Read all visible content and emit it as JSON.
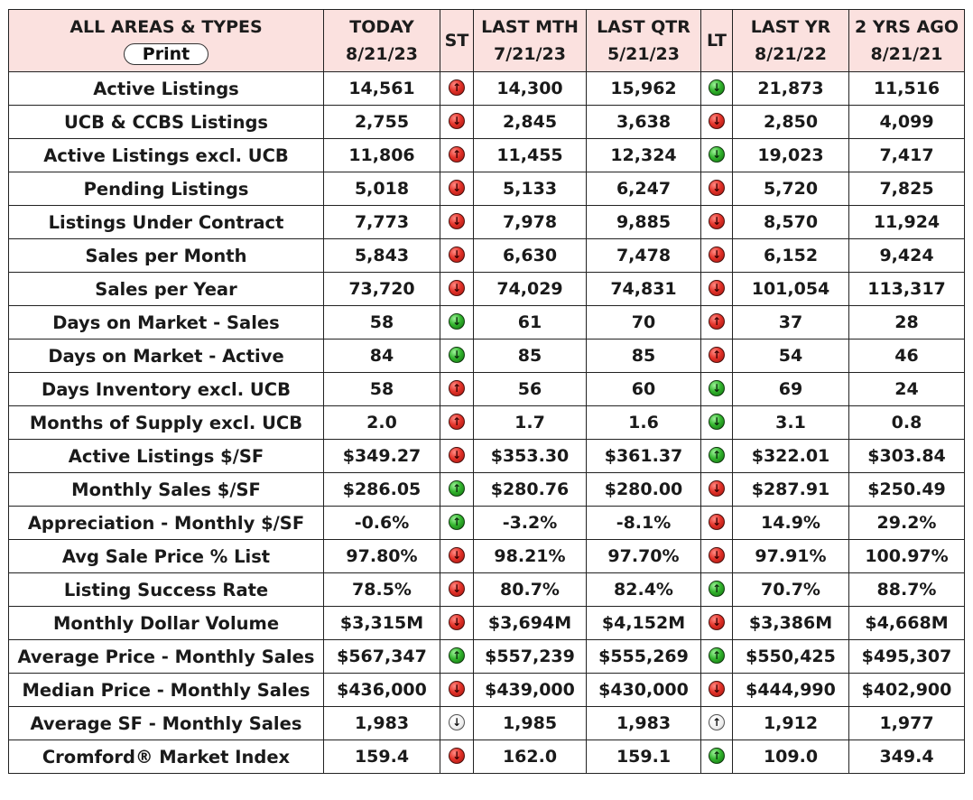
{
  "header": {
    "area_title": "ALL AREAS & TYPES",
    "print_label": "Print",
    "columns": [
      {
        "label": "TODAY",
        "date": "8/21/23"
      },
      {
        "label": "ST",
        "date": ""
      },
      {
        "label": "LAST MTH",
        "date": "7/21/23"
      },
      {
        "label": "LAST QTR",
        "date": "5/21/23"
      },
      {
        "label": "LT",
        "date": ""
      },
      {
        "label": "LAST YR",
        "date": "8/21/22"
      },
      {
        "label": "2 YRS AGO",
        "date": "8/21/21"
      }
    ]
  },
  "colors": {
    "header_bg": "#fbe1df",
    "up_red": "#e4332a",
    "down_green": "#33b52e",
    "neutral": "#ffffff"
  },
  "rows": [
    {
      "metric": "Active Listings",
      "today": "14,561",
      "st": {
        "dir": "up",
        "color": "red"
      },
      "last_mth": "14,300",
      "last_qtr": "15,962",
      "lt": {
        "dir": "down",
        "color": "green"
      },
      "last_yr": "21,873",
      "two_yrs": "11,516"
    },
    {
      "metric": "UCB & CCBS Listings",
      "today": "2,755",
      "st": {
        "dir": "down",
        "color": "red"
      },
      "last_mth": "2,845",
      "last_qtr": "3,638",
      "lt": {
        "dir": "down",
        "color": "red"
      },
      "last_yr": "2,850",
      "two_yrs": "4,099"
    },
    {
      "metric": "Active Listings excl. UCB",
      "today": "11,806",
      "st": {
        "dir": "up",
        "color": "red"
      },
      "last_mth": "11,455",
      "last_qtr": "12,324",
      "lt": {
        "dir": "down",
        "color": "green"
      },
      "last_yr": "19,023",
      "two_yrs": "7,417"
    },
    {
      "metric": "Pending Listings",
      "today": "5,018",
      "st": {
        "dir": "down",
        "color": "red"
      },
      "last_mth": "5,133",
      "last_qtr": "6,247",
      "lt": {
        "dir": "down",
        "color": "red"
      },
      "last_yr": "5,720",
      "two_yrs": "7,825"
    },
    {
      "metric": "Listings Under Contract",
      "today": "7,773",
      "st": {
        "dir": "down",
        "color": "red"
      },
      "last_mth": "7,978",
      "last_qtr": "9,885",
      "lt": {
        "dir": "down",
        "color": "red"
      },
      "last_yr": "8,570",
      "two_yrs": "11,924"
    },
    {
      "metric": "Sales per Month",
      "today": "5,843",
      "st": {
        "dir": "down",
        "color": "red"
      },
      "last_mth": "6,630",
      "last_qtr": "7,478",
      "lt": {
        "dir": "down",
        "color": "red"
      },
      "last_yr": "6,152",
      "two_yrs": "9,424"
    },
    {
      "metric": "Sales per Year",
      "today": "73,720",
      "st": {
        "dir": "down",
        "color": "red"
      },
      "last_mth": "74,029",
      "last_qtr": "74,831",
      "lt": {
        "dir": "down",
        "color": "red"
      },
      "last_yr": "101,054",
      "two_yrs": "113,317"
    },
    {
      "metric": "Days on Market - Sales",
      "today": "58",
      "st": {
        "dir": "down",
        "color": "green"
      },
      "last_mth": "61",
      "last_qtr": "70",
      "lt": {
        "dir": "up",
        "color": "red"
      },
      "last_yr": "37",
      "two_yrs": "28"
    },
    {
      "metric": "Days on Market - Active",
      "today": "84",
      "st": {
        "dir": "down",
        "color": "green"
      },
      "last_mth": "85",
      "last_qtr": "85",
      "lt": {
        "dir": "up",
        "color": "red"
      },
      "last_yr": "54",
      "two_yrs": "46"
    },
    {
      "metric": "Days Inventory excl. UCB",
      "today": "58",
      "st": {
        "dir": "up",
        "color": "red"
      },
      "last_mth": "56",
      "last_qtr": "60",
      "lt": {
        "dir": "down",
        "color": "green"
      },
      "last_yr": "69",
      "two_yrs": "24"
    },
    {
      "metric": "Months of Supply excl. UCB",
      "today": "2.0",
      "st": {
        "dir": "up",
        "color": "red"
      },
      "last_mth": "1.7",
      "last_qtr": "1.6",
      "lt": {
        "dir": "down",
        "color": "green"
      },
      "last_yr": "3.1",
      "two_yrs": "0.8"
    },
    {
      "metric": "Active Listings $/SF",
      "today": "$349.27",
      "st": {
        "dir": "down",
        "color": "red"
      },
      "last_mth": "$353.30",
      "last_qtr": "$361.37",
      "lt": {
        "dir": "up",
        "color": "green"
      },
      "last_yr": "$322.01",
      "two_yrs": "$303.84"
    },
    {
      "metric": "Monthly Sales $/SF",
      "today": "$286.05",
      "st": {
        "dir": "up",
        "color": "green"
      },
      "last_mth": "$280.76",
      "last_qtr": "$280.00",
      "lt": {
        "dir": "down",
        "color": "red"
      },
      "last_yr": "$287.91",
      "two_yrs": "$250.49"
    },
    {
      "metric": "Appreciation - Monthly $/SF",
      "today": "-0.6%",
      "st": {
        "dir": "up",
        "color": "green"
      },
      "last_mth": "-3.2%",
      "last_qtr": "-8.1%",
      "lt": {
        "dir": "down",
        "color": "red"
      },
      "last_yr": "14.9%",
      "two_yrs": "29.2%"
    },
    {
      "metric": "Avg Sale Price % List",
      "today": "97.80%",
      "st": {
        "dir": "down",
        "color": "red"
      },
      "last_mth": "98.21%",
      "last_qtr": "97.70%",
      "lt": {
        "dir": "down",
        "color": "red"
      },
      "last_yr": "97.91%",
      "two_yrs": "100.97%"
    },
    {
      "metric": "Listing Success Rate",
      "today": "78.5%",
      "st": {
        "dir": "down",
        "color": "red"
      },
      "last_mth": "80.7%",
      "last_qtr": "82.4%",
      "lt": {
        "dir": "up",
        "color": "green"
      },
      "last_yr": "70.7%",
      "two_yrs": "88.7%"
    },
    {
      "metric": "Monthly Dollar Volume",
      "today": "$3,315M",
      "st": {
        "dir": "down",
        "color": "red"
      },
      "last_mth": "$3,694M",
      "last_qtr": "$4,152M",
      "lt": {
        "dir": "down",
        "color": "red"
      },
      "last_yr": "$3,386M",
      "two_yrs": "$4,668M"
    },
    {
      "metric": "Average Price - Monthly Sales",
      "today": "$567,347",
      "st": {
        "dir": "up",
        "color": "green"
      },
      "last_mth": "$557,239",
      "last_qtr": "$555,269",
      "lt": {
        "dir": "up",
        "color": "green"
      },
      "last_yr": "$550,425",
      "two_yrs": "$495,307"
    },
    {
      "metric": "Median Price - Monthly Sales",
      "today": "$436,000",
      "st": {
        "dir": "down",
        "color": "red"
      },
      "last_mth": "$439,000",
      "last_qtr": "$430,000",
      "lt": {
        "dir": "down",
        "color": "red"
      },
      "last_yr": "$444,990",
      "two_yrs": "$402,900"
    },
    {
      "metric": "Average SF - Monthly Sales",
      "today": "1,983",
      "st": {
        "dir": "down",
        "color": "white"
      },
      "last_mth": "1,985",
      "last_qtr": "1,983",
      "lt": {
        "dir": "up",
        "color": "white"
      },
      "last_yr": "1,912",
      "two_yrs": "1,977"
    },
    {
      "metric": "Cromford® Market Index",
      "today": "159.4",
      "st": {
        "dir": "down",
        "color": "red"
      },
      "last_mth": "162.0",
      "last_qtr": "159.1",
      "lt": {
        "dir": "up",
        "color": "green"
      },
      "last_yr": "109.0",
      "two_yrs": "349.4"
    }
  ]
}
